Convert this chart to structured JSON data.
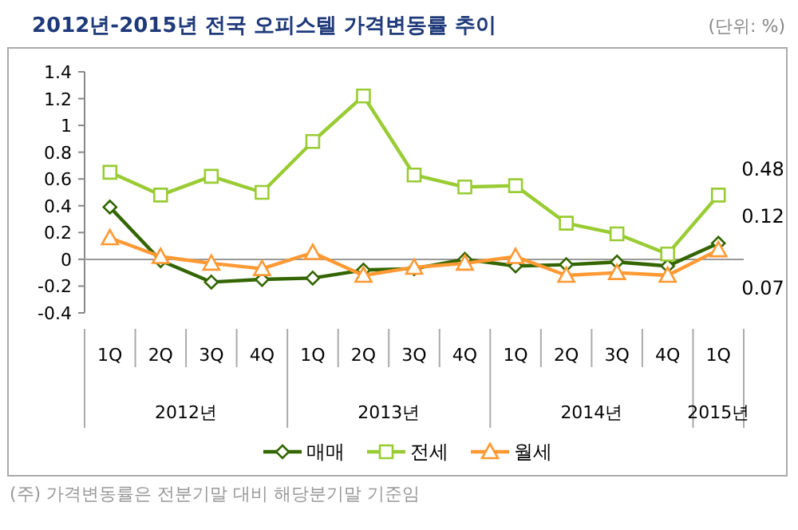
{
  "chart_data": {
    "type": "line",
    "title": "2012년-2015년 전국 오피스텔 가격변동률 추이",
    "subtitle": "(단위: %)",
    "categories": [
      "1Q",
      "2Q",
      "3Q",
      "4Q",
      "1Q",
      "2Q",
      "3Q",
      "4Q",
      "1Q",
      "2Q",
      "3Q",
      "4Q",
      "1Q"
    ],
    "series": [
      {
        "name": "매매",
        "color": "#336600",
        "marker": "diamond",
        "values": [
          0.39,
          -0.01,
          -0.17,
          -0.15,
          -0.14,
          -0.08,
          -0.07,
          0.0,
          -0.05,
          -0.04,
          -0.02,
          -0.05,
          0.12
        ],
        "value_labels": [
          null,
          null,
          null,
          null,
          null,
          null,
          null,
          null,
          null,
          null,
          null,
          null,
          "0.12"
        ]
      },
      {
        "name": "전세",
        "color": "#99cc33",
        "marker": "square",
        "values": [
          0.65,
          0.48,
          0.62,
          0.5,
          0.88,
          1.22,
          0.63,
          0.54,
          0.55,
          0.27,
          0.19,
          0.04,
          0.48
        ],
        "value_labels": [
          null,
          null,
          null,
          null,
          null,
          null,
          null,
          null,
          null,
          null,
          null,
          null,
          "0.48"
        ]
      },
      {
        "name": "월세",
        "color": "#ff9933",
        "marker": "triangle",
        "values": [
          0.16,
          0.02,
          -0.03,
          -0.07,
          0.05,
          -0.12,
          -0.06,
          -0.03,
          0.02,
          -0.12,
          -0.1,
          -0.12,
          0.07
        ],
        "value_labels": [
          null,
          null,
          null,
          null,
          null,
          null,
          null,
          null,
          null,
          null,
          null,
          null,
          "0.07"
        ]
      }
    ],
    "ylim": [
      -0.4,
      1.4
    ],
    "yticks": [
      -0.4,
      -0.2,
      0,
      0.2,
      0.4,
      0.6,
      0.8,
      1,
      1.2,
      1.4
    ],
    "ref_lines": [
      {
        "axis": "y",
        "value": 0,
        "color": "#999999"
      }
    ],
    "legend": "bottom",
    "annotations": [
      "2012년",
      "2013년",
      "2014년",
      "2015년",
      "(주) 가격변동률은 전분기말 대비 해당분기말 기준임"
    ]
  }
}
